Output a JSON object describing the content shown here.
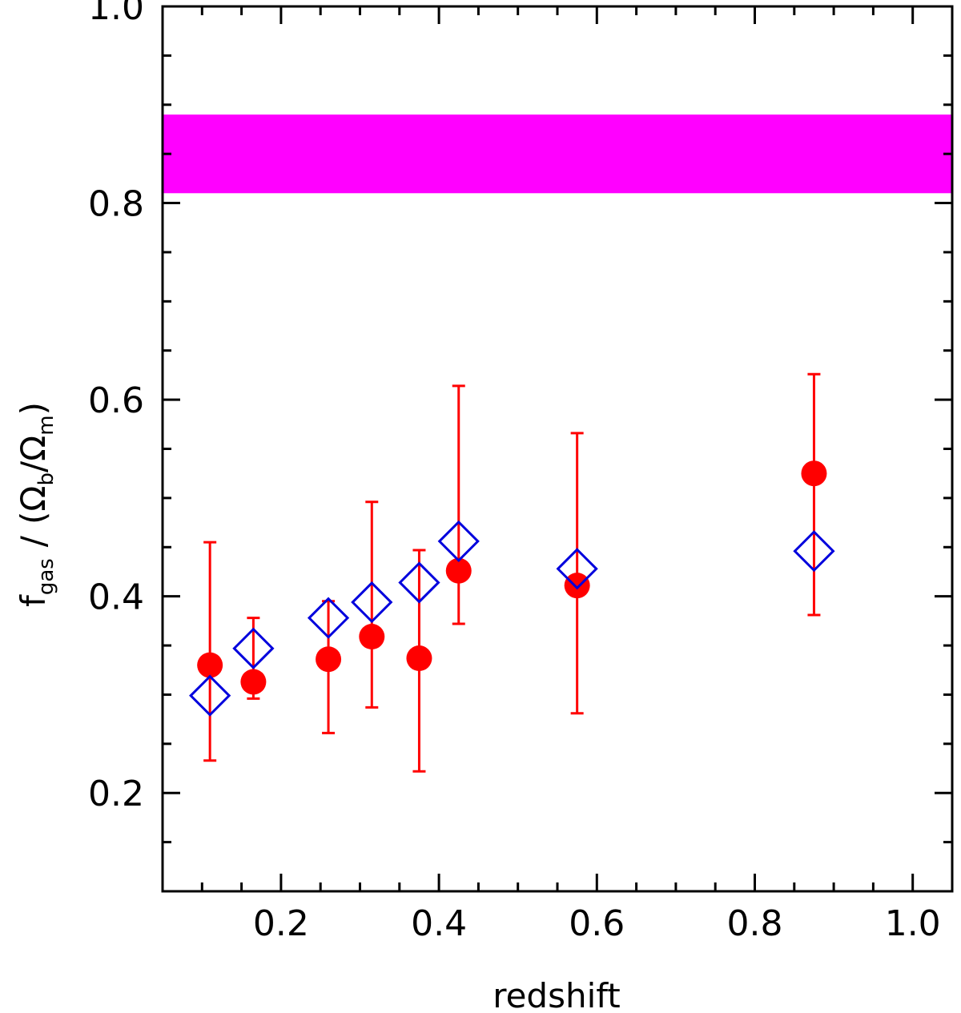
{
  "chart_data": {
    "type": "scatter",
    "title": "",
    "xlabel": "redshift",
    "ylabel": {
      "f": "f",
      "f_sub": "gas",
      "slash1": "/",
      "open_paren": "(",
      "omega_b": "Ω",
      "b_sub": "b",
      "slash2": "/",
      "omega_m": "Ω",
      "m_sub": "m",
      "close_paren": ")"
    },
    "xlim": [
      0.05,
      1.05
    ],
    "ylim": [
      0.1,
      1.0
    ],
    "x_ticks": [
      {
        "value": 0.2,
        "label": "0.2"
      },
      {
        "value": 0.4,
        "label": "0.4"
      },
      {
        "value": 0.6,
        "label": "0.6"
      },
      {
        "value": 0.8,
        "label": "0.8"
      },
      {
        "value": 1.0,
        "label": "1.0"
      }
    ],
    "y_ticks": [
      {
        "value": 0.2,
        "label": "0.2"
      },
      {
        "value": 0.4,
        "label": "0.4"
      },
      {
        "value": 0.6,
        "label": "0.6"
      },
      {
        "value": 0.8,
        "label": "0.8"
      },
      {
        "value": 1.0,
        "label": "1.0"
      }
    ],
    "x_minor_step": 0.05,
    "y_minor_step": 0.05,
    "band": {
      "y_low": 0.81,
      "y_high": 0.89,
      "color": "#ff00ff"
    },
    "series": [
      {
        "name": "filled circles with error bars",
        "marker": "filled-circle",
        "color": "#ff0000",
        "points": [
          {
            "x": 0.11,
            "y": 0.33,
            "y_low": 0.233,
            "y_high": 0.455
          },
          {
            "x": 0.165,
            "y": 0.313,
            "y_low": 0.296,
            "y_high": 0.378
          },
          {
            "x": 0.26,
            "y": 0.336,
            "y_low": 0.261,
            "y_high": 0.395
          },
          {
            "x": 0.315,
            "y": 0.359,
            "y_low": 0.287,
            "y_high": 0.496
          },
          {
            "x": 0.375,
            "y": 0.337,
            "y_low": 0.222,
            "y_high": 0.447
          },
          {
            "x": 0.425,
            "y": 0.426,
            "y_low": 0.372,
            "y_high": 0.614
          },
          {
            "x": 0.575,
            "y": 0.411,
            "y_low": 0.281,
            "y_high": 0.566
          },
          {
            "x": 0.875,
            "y": 0.525,
            "y_low": 0.381,
            "y_high": 0.626
          }
        ]
      },
      {
        "name": "open diamonds",
        "marker": "open-diamond",
        "color": "#0000dd",
        "points": [
          {
            "x": 0.11,
            "y": 0.299
          },
          {
            "x": 0.165,
            "y": 0.347
          },
          {
            "x": 0.26,
            "y": 0.378
          },
          {
            "x": 0.315,
            "y": 0.394
          },
          {
            "x": 0.375,
            "y": 0.414
          },
          {
            "x": 0.425,
            "y": 0.456
          },
          {
            "x": 0.575,
            "y": 0.428
          },
          {
            "x": 0.875,
            "y": 0.446
          }
        ]
      }
    ]
  }
}
